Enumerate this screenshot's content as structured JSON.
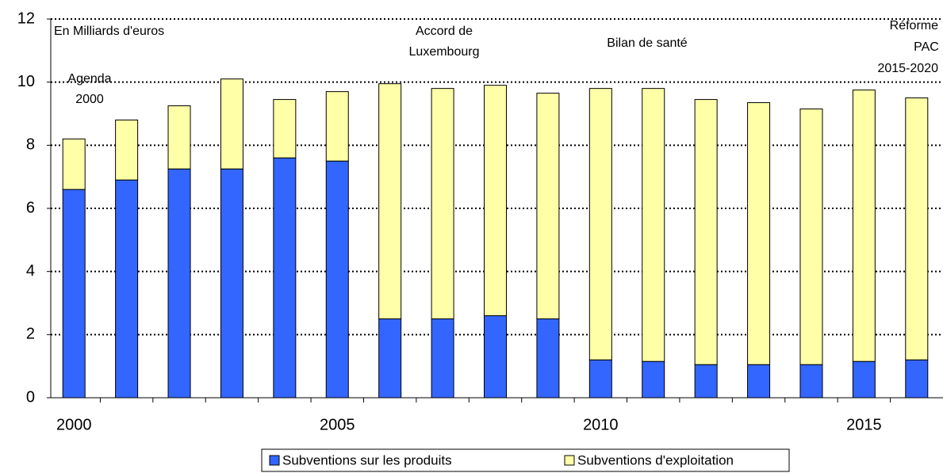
{
  "chart_data": {
    "type": "stacked_bar",
    "categories": [
      "2000",
      null,
      null,
      null,
      null,
      "2005",
      null,
      null,
      null,
      null,
      "2010",
      null,
      null,
      null,
      null,
      "2015",
      null
    ],
    "series": [
      {
        "name": "Subventions sur les produits",
        "color": "#3366ff",
        "values": [
          6.6,
          6.9,
          7.25,
          7.25,
          7.6,
          7.5,
          2.5,
          2.5,
          2.6,
          2.5,
          1.2,
          1.15,
          1.05,
          1.05,
          1.05,
          1.15,
          1.2
        ]
      },
      {
        "name": "Subventions d'exploitation",
        "color": "#ffffa8",
        "values": [
          1.6,
          1.9,
          2.0,
          2.85,
          1.85,
          2.2,
          7.45,
          7.3,
          7.3,
          7.15,
          8.6,
          8.65,
          8.4,
          8.3,
          8.1,
          8.6,
          8.3
        ]
      }
    ],
    "ylim": [
      0,
      12
    ],
    "yticks": [
      0,
      2,
      4,
      6,
      8,
      10,
      12
    ],
    "grid": true,
    "annotations": [
      {
        "lines": [
          "En Milliards d'euros"
        ]
      },
      {
        "lines": [
          "Agenda",
          "2000"
        ]
      },
      {
        "lines": [
          "Accord de",
          "Luxembourg"
        ]
      },
      {
        "lines": [
          "Bilan de santé"
        ]
      },
      {
        "lines": [
          "Réforme",
          "PAC",
          "2015-2020"
        ]
      }
    ]
  }
}
